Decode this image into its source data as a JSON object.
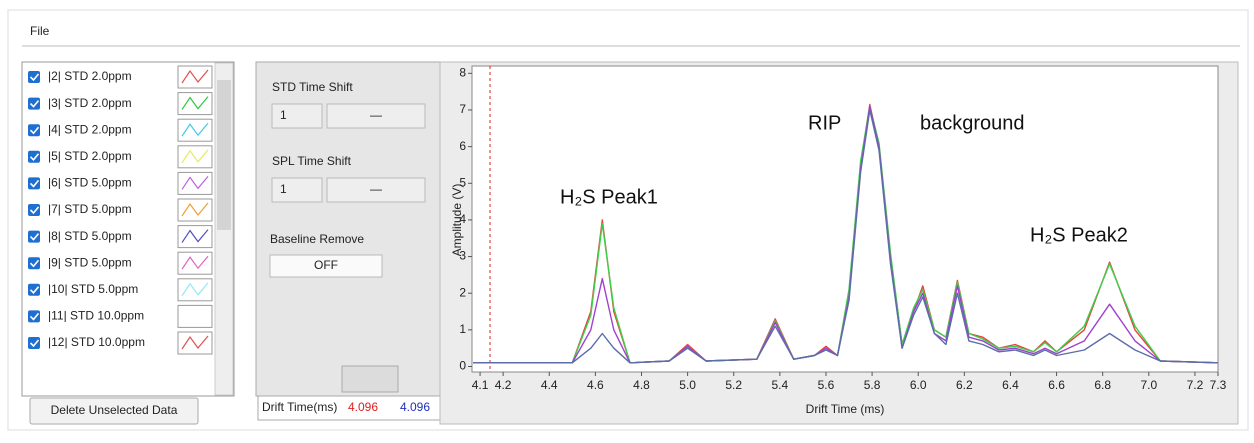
{
  "menu": {
    "file": "File"
  },
  "list": {
    "items": [
      {
        "label": "|2| STD 2.0ppm",
        "color": "#e05050"
      },
      {
        "label": "|3| STD 2.0ppm",
        "color": "#30c840"
      },
      {
        "label": "|4| STD 2.0ppm",
        "color": "#40c8e8"
      },
      {
        "label": "|5| STD 2.0ppm",
        "color": "#e8e860"
      },
      {
        "label": "|6| STD 5.0ppm",
        "color": "#c060e0"
      },
      {
        "label": "|7| STD 5.0ppm",
        "color": "#f0a030"
      },
      {
        "label": "|8| STD 5.0ppm",
        "color": "#5050c0"
      },
      {
        "label": "|9| STD 5.0ppm",
        "color": "#e060c0"
      },
      {
        "label": "|10| STD 5.0ppm",
        "color": "#90e8f8"
      },
      {
        "label": "|11| STD 10.0ppm",
        "color": "#ffffff"
      },
      {
        "label": "|12| STD 10.0ppm",
        "color": "#e05050"
      }
    ],
    "delete_button": "Delete Unselected Data"
  },
  "controls": {
    "std_label": "STD Time Shift",
    "std_value": 1,
    "std_field": "—",
    "spl_label": "SPL Time Shift",
    "spl_value": 1,
    "spl_field": "—",
    "baseline_label": "Baseline Remove",
    "baseline_value": "OFF"
  },
  "cursor": {
    "label": "Drift Time(ms)",
    "x1": 4.096,
    "x2": 4.096
  },
  "chart_data": {
    "type": "line",
    "xlabel": "Drift Time (ms)",
    "ylabel": "Amplitude (V)",
    "annotations": [
      "H₂S Peak1",
      "RIP",
      "background",
      "H₂S Peak2"
    ],
    "x": [
      4.07,
      4.5,
      4.58,
      4.63,
      4.68,
      4.75,
      4.92,
      5.0,
      5.08,
      5.3,
      5.38,
      5.46,
      5.55,
      5.6,
      5.65,
      5.7,
      5.75,
      5.79,
      5.83,
      5.88,
      5.93,
      5.98,
      6.02,
      6.07,
      6.12,
      6.17,
      6.22,
      6.28,
      6.35,
      6.42,
      6.5,
      6.55,
      6.6,
      6.72,
      6.83,
      6.94,
      7.05,
      7.3
    ],
    "series": [
      {
        "color": "#e8443a",
        "values": [
          0.1,
          0.1,
          1.5,
          4.0,
          1.5,
          0.1,
          0.15,
          0.6,
          0.15,
          0.2,
          1.3,
          0.2,
          0.3,
          0.55,
          0.3,
          2.0,
          5.5,
          7.15,
          6.0,
          3.0,
          0.6,
          1.5,
          2.2,
          1.0,
          0.8,
          2.35,
          0.9,
          0.8,
          0.5,
          0.6,
          0.4,
          0.7,
          0.4,
          1.0,
          2.85,
          1.0,
          0.15,
          0.1
        ]
      },
      {
        "color": "#3ecf4a",
        "values": [
          0.1,
          0.1,
          1.4,
          3.9,
          1.6,
          0.1,
          0.15,
          0.55,
          0.15,
          0.2,
          1.25,
          0.2,
          0.3,
          0.5,
          0.3,
          2.1,
          5.6,
          7.1,
          6.1,
          3.1,
          0.6,
          1.6,
          2.1,
          1.0,
          0.8,
          2.3,
          0.9,
          0.75,
          0.5,
          0.55,
          0.4,
          0.65,
          0.4,
          1.1,
          2.8,
          1.1,
          0.15,
          0.1
        ]
      },
      {
        "color": "#a040d0",
        "values": [
          0.1,
          0.1,
          1.0,
          2.4,
          1.0,
          0.1,
          0.15,
          0.55,
          0.15,
          0.2,
          1.2,
          0.2,
          0.3,
          0.5,
          0.3,
          1.9,
          5.4,
          7.1,
          6.0,
          2.9,
          0.5,
          1.5,
          2.0,
          0.9,
          0.7,
          2.2,
          0.8,
          0.7,
          0.45,
          0.5,
          0.35,
          0.5,
          0.35,
          0.7,
          1.7,
          0.7,
          0.15,
          0.1
        ]
      },
      {
        "color": "#5a6ea8",
        "values": [
          0.1,
          0.1,
          0.5,
          0.9,
          0.5,
          0.1,
          0.15,
          0.5,
          0.15,
          0.2,
          1.1,
          0.2,
          0.3,
          0.45,
          0.3,
          1.8,
          5.3,
          7.0,
          5.9,
          2.8,
          0.5,
          1.4,
          1.9,
          0.9,
          0.6,
          2.0,
          0.7,
          0.6,
          0.4,
          0.45,
          0.3,
          0.45,
          0.3,
          0.45,
          0.9,
          0.45,
          0.15,
          0.1
        ]
      }
    ],
    "xlim": [
      4.065,
      7.3
    ],
    "ylim": [
      -0.15,
      8.2
    ],
    "xticks": [
      4.1,
      4.2,
      4.4,
      4.6,
      4.8,
      {
        "value": 5,
        "label": "5.0"
      },
      5.2,
      5.4,
      5.6,
      5.8,
      {
        "value": 6,
        "label": "6.0"
      },
      6.2,
      6.4,
      6.6,
      6.8,
      {
        "value": 7,
        "label": "7.0"
      },
      7.2,
      7.3
    ],
    "yticks": [
      0,
      1,
      2,
      3,
      4,
      5,
      6,
      7,
      8
    ]
  }
}
